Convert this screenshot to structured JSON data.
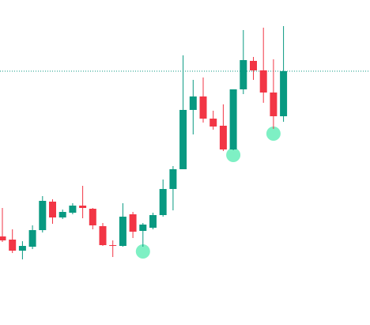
{
  "chart_data": {
    "type": "candlestick",
    "ylim": [
      0,
      411
    ],
    "up_color": "#089981",
    "down_color": "#f23645",
    "marker_color": "#7ef0c4",
    "last_price_line": true,
    "open": [
      112,
      108,
      94,
      99,
      120,
      156,
      136,
      142,
      151,
      147,
      125,
      101,
      100,
      140,
      119,
      123,
      139,
      172,
      197,
      272,
      289,
      261,
      252,
      222,
      298,
      334,
      322,
      294,
      264
    ],
    "high": [
      148,
      121,
      106,
      126,
      163,
      159,
      146,
      154,
      176,
      148,
      129,
      107,
      154,
      143,
      129,
      142,
      184,
      201,
      341,
      310,
      313,
      271,
      279,
      298,
      373,
      339,
      376,
      336,
      378
    ],
    "low": [
      105,
      91,
      83,
      96,
      117,
      128,
      134,
      140,
      135,
      121,
      100,
      86,
      99,
      110,
      99,
      121,
      137,
      145,
      197,
      241,
      256,
      247,
      220,
      221,
      292,
      310,
      281,
      248,
      257
    ],
    "close": [
      107,
      94,
      100,
      120,
      157,
      136,
      143,
      151,
      148,
      126,
      101,
      100,
      137,
      118,
      127,
      139,
      172,
      197,
      272,
      289,
      261,
      251,
      222,
      298,
      335,
      322,
      294,
      264,
      321
    ],
    "markers": [
      14,
      23,
      27
    ]
  }
}
